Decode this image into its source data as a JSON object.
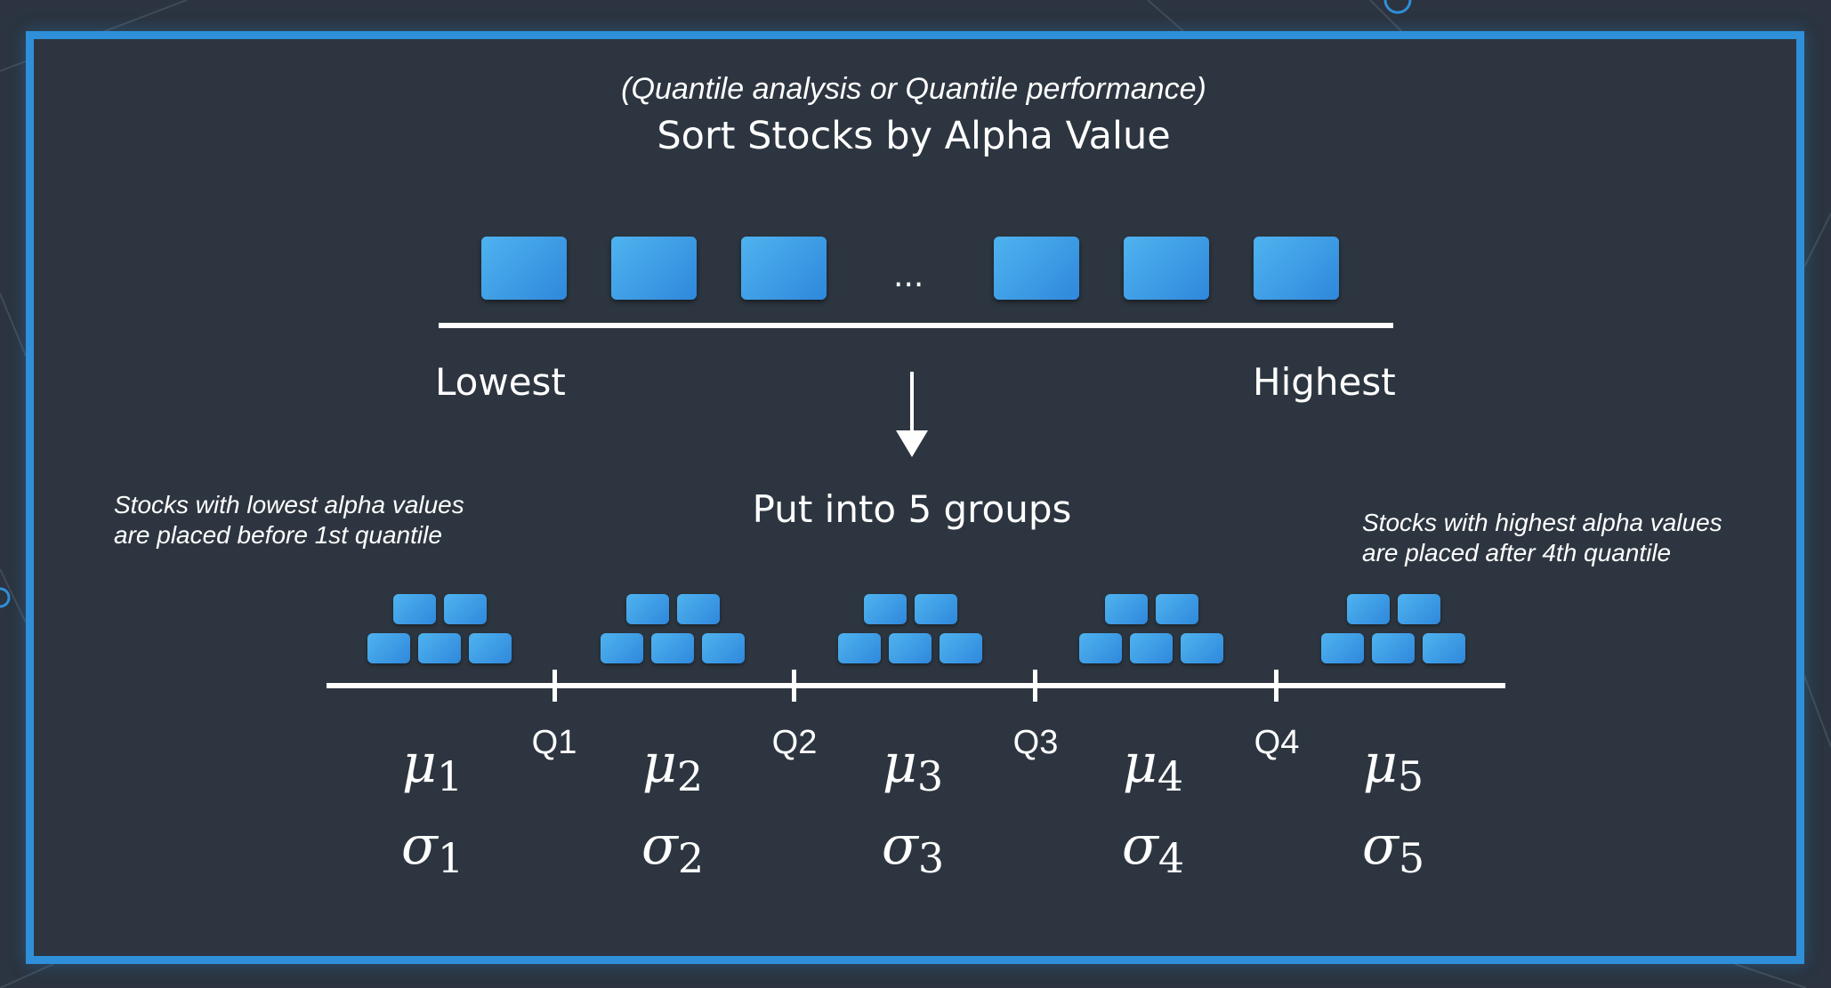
{
  "header": {
    "subtitle": "(Quantile analysis or Quantile performance)",
    "title": "Sort Stocks by Alpha Value"
  },
  "sorted_row": {
    "ellipsis": "...",
    "low_label": "Lowest",
    "high_label": "Highest"
  },
  "grouping": {
    "label": "Put into 5 groups",
    "note_left_line1": "Stocks with lowest alpha values",
    "note_left_line2": "are placed before 1st quantile",
    "note_right_line1": "Stocks with highest alpha values",
    "note_right_line2": "are placed after 4th quantile"
  },
  "quantiles": [
    "Q1",
    "Q2",
    "Q3",
    "Q4"
  ],
  "groups": [
    {
      "mu": "μ",
      "sigma": "σ",
      "index": "1"
    },
    {
      "mu": "μ",
      "sigma": "σ",
      "index": "2"
    },
    {
      "mu": "μ",
      "sigma": "σ",
      "index": "3"
    },
    {
      "mu": "μ",
      "sigma": "σ",
      "index": "4"
    },
    {
      "mu": "μ",
      "sigma": "σ",
      "index": "5"
    }
  ],
  "colors": {
    "frame": "#2f8fd8",
    "background": "#2d3640",
    "stock_block": "#3a9be6",
    "text": "#ffffff"
  }
}
